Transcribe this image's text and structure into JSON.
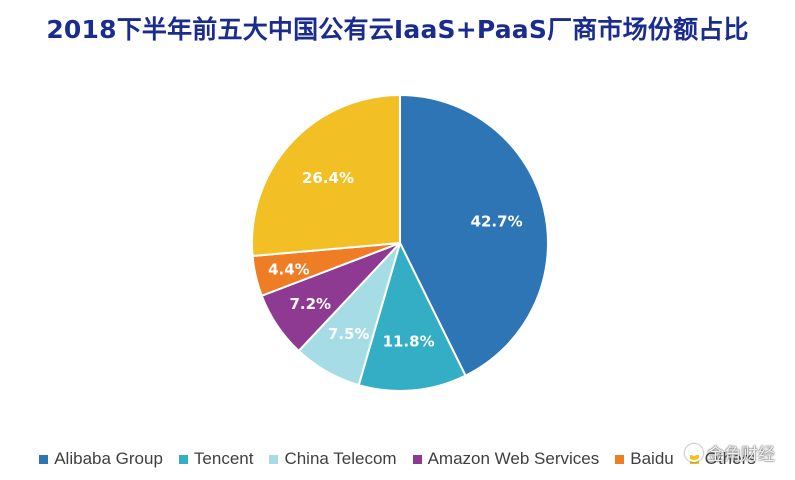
{
  "chart_data": {
    "type": "pie",
    "title": "2018下半年前五大中国公有云IaaS+PaaS厂商市场份额占比",
    "categories": [
      "Alibaba Group",
      "Tencent",
      "China Telecom",
      "Amazon Web Services",
      "Baidu",
      "Others"
    ],
    "values": [
      42.7,
      11.8,
      7.5,
      7.2,
      4.4,
      26.4
    ],
    "data_labels": [
      "42.7%",
      "11.8%",
      "7.5%",
      "7.2%",
      "4.4%",
      "26.4%"
    ],
    "colors": [
      "#2e75b6",
      "#34aec4",
      "#a6dce6",
      "#8e3a93",
      "#ee7d26",
      "#f2bf25"
    ],
    "start_angle": "12 o'clock, clockwise",
    "legend_position": "bottom"
  },
  "watermark": {
    "text": "金角财经",
    "icon": "watermark-logo-icon"
  }
}
